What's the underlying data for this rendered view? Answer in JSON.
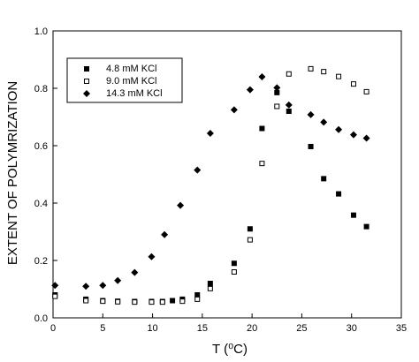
{
  "chart_data": {
    "type": "scatter",
    "xlabel": "T (⁰C)",
    "ylabel": "EXTENT OF POLYMRIZATION",
    "xlim": [
      0,
      35
    ],
    "ylim": [
      0,
      1.0
    ],
    "xticks": [
      0,
      5,
      10,
      15,
      20,
      25,
      30,
      35
    ],
    "xtick_labels": [
      "0",
      "5",
      "10",
      "15",
      "20",
      "25",
      "30",
      "35"
    ],
    "yticks": [
      0.0,
      0.2,
      0.4,
      0.6,
      0.8,
      1.0
    ],
    "ytick_labels": [
      "0.0",
      "0.2",
      "0.4",
      "0.6",
      "0.8",
      "1.0"
    ],
    "grid": false,
    "legend_position": "top-left",
    "series": [
      {
        "name": "4.8 mM KCl",
        "marker": "filled-square",
        "color": "#000000",
        "points": [
          [
            0.2,
            0.08
          ],
          [
            3.3,
            0.065
          ],
          [
            5.0,
            0.06
          ],
          [
            6.5,
            0.058
          ],
          [
            8.2,
            0.057
          ],
          [
            9.9,
            0.057
          ],
          [
            11.0,
            0.057
          ],
          [
            12.0,
            0.06
          ],
          [
            13.0,
            0.065
          ],
          [
            14.5,
            0.08
          ],
          [
            15.8,
            0.12
          ],
          [
            18.2,
            0.19
          ],
          [
            19.8,
            0.31
          ],
          [
            21.0,
            0.66
          ],
          [
            22.5,
            0.785
          ],
          [
            23.7,
            0.72
          ],
          [
            25.9,
            0.597
          ],
          [
            27.2,
            0.485
          ],
          [
            28.7,
            0.432
          ],
          [
            30.2,
            0.358
          ],
          [
            31.5,
            0.318
          ]
        ]
      },
      {
        "name": "9.0 mM KCl",
        "marker": "open-square",
        "color": "#000000",
        "points": [
          [
            0.2,
            0.075
          ],
          [
            3.3,
            0.06
          ],
          [
            5.0,
            0.058
          ],
          [
            6.5,
            0.056
          ],
          [
            8.2,
            0.055
          ],
          [
            9.9,
            0.055
          ],
          [
            11.0,
            0.055
          ],
          [
            13.0,
            0.058
          ],
          [
            14.5,
            0.065
          ],
          [
            15.8,
            0.102
          ],
          [
            18.2,
            0.16
          ],
          [
            19.8,
            0.272
          ],
          [
            21.0,
            0.538
          ],
          [
            22.5,
            0.737
          ],
          [
            23.7,
            0.85
          ],
          [
            25.9,
            0.868
          ],
          [
            27.2,
            0.858
          ],
          [
            28.7,
            0.841
          ],
          [
            30.2,
            0.815
          ],
          [
            31.5,
            0.788
          ]
        ]
      },
      {
        "name": "14.3 mM KCl",
        "marker": "filled-diamond",
        "color": "#000000",
        "points": [
          [
            0.2,
            0.113
          ],
          [
            3.3,
            0.11
          ],
          [
            5.0,
            0.113
          ],
          [
            6.5,
            0.13
          ],
          [
            8.2,
            0.158
          ],
          [
            9.9,
            0.213
          ],
          [
            11.2,
            0.29
          ],
          [
            12.8,
            0.392
          ],
          [
            14.5,
            0.515
          ],
          [
            15.8,
            0.643
          ],
          [
            18.2,
            0.725
          ],
          [
            19.8,
            0.795
          ],
          [
            21.0,
            0.84
          ],
          [
            22.5,
            0.802
          ],
          [
            23.7,
            0.742
          ],
          [
            25.9,
            0.708
          ],
          [
            27.2,
            0.682
          ],
          [
            28.7,
            0.656
          ],
          [
            30.2,
            0.638
          ],
          [
            31.5,
            0.626
          ]
        ]
      }
    ]
  }
}
